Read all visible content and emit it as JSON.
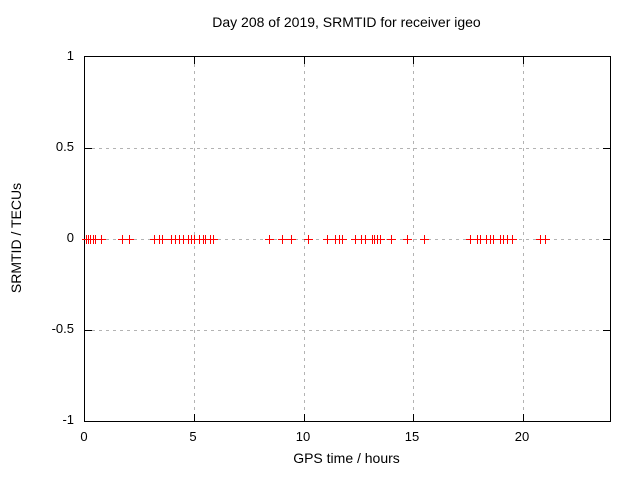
{
  "chart_data": {
    "type": "scatter",
    "title": "Day 208 of 2019, SRMTID for receiver igeo",
    "xlabel": "GPS time / hours",
    "ylabel": "SRMTID / TECUs",
    "xlim": [
      0,
      24
    ],
    "ylim": [
      -1,
      1
    ],
    "xticks": [
      0,
      5,
      10,
      15,
      20
    ],
    "yticks": [
      1,
      0.5,
      0,
      -0.5,
      -1
    ],
    "grid": true,
    "legend_position": "none",
    "marker": "plus",
    "colors": {
      "marker": "#ff0000",
      "grid": "#b3b3b3",
      "axis": "#000000",
      "background": "#ffffff"
    },
    "series": [
      {
        "name": "SRMTID",
        "x": [
          0.05,
          0.15,
          0.25,
          0.35,
          0.45,
          0.75,
          1.7,
          2.0,
          3.15,
          3.4,
          3.5,
          3.95,
          4.1,
          4.3,
          4.5,
          4.7,
          4.85,
          5.0,
          5.2,
          5.4,
          5.5,
          5.7,
          5.85,
          8.4,
          9.0,
          9.4,
          10.2,
          11.05,
          11.45,
          11.6,
          11.75,
          12.35,
          12.6,
          12.8,
          13.1,
          13.2,
          13.35,
          13.5,
          14.0,
          14.7,
          15.5,
          17.6,
          17.9,
          18.05,
          18.35,
          18.5,
          18.65,
          18.95,
          19.1,
          19.3,
          19.5,
          20.8,
          21.05
        ],
        "y": [
          0,
          0,
          0,
          0,
          0,
          0,
          0,
          0,
          0,
          0,
          0,
          0,
          0,
          0,
          0,
          0,
          0,
          0,
          0,
          0,
          0,
          0,
          0,
          0,
          0,
          0,
          0,
          0,
          0,
          0,
          0,
          0,
          0,
          0,
          0,
          0,
          0,
          0,
          0,
          0,
          0,
          0,
          0,
          0,
          0,
          0,
          0,
          0,
          0,
          0,
          0,
          0,
          0
        ]
      }
    ]
  }
}
